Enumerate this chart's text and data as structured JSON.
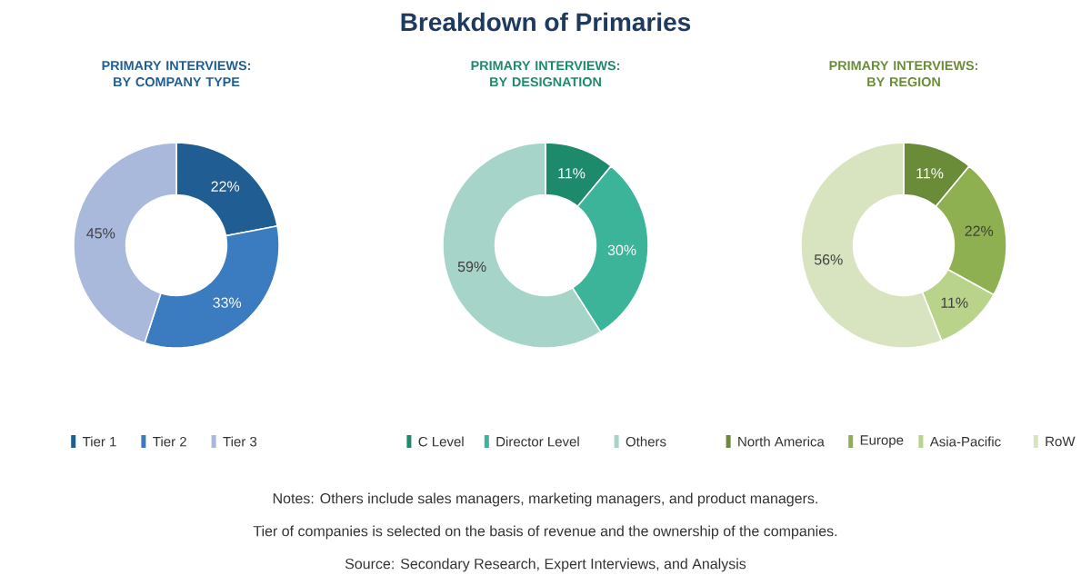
{
  "chart_data": [
    {
      "type": "donut",
      "title": "PRIMARY INTERVIEWS: BY COMPANY TYPE",
      "categories": [
        "Tier 1",
        "Tier 2",
        "Tier 3"
      ],
      "values": [
        22,
        33,
        45
      ],
      "colors": [
        "#1f5d93",
        "#3b7cc0",
        "#a8b9dc"
      ],
      "value_labels": [
        "22%",
        "33%",
        "45%"
      ],
      "legend": "bottom",
      "annotations": [
        "Breakdown of Primaries",
        "Notes: Others include sales managers, marketing managers, and product managers.",
        "Tier of companies is selected on the basis of revenue and the ownership of the companies.",
        "Source: Secondary Research, Expert Interviews, and Analysis"
      ]
    },
    {
      "type": "donut",
      "title": "PRIMARY INTERVIEWS: BY DESIGNATION",
      "categories": [
        "C Level",
        "Director Level",
        "Others"
      ],
      "values": [
        11,
        30,
        59
      ],
      "colors": [
        "#1d8a6c",
        "#3bb49a",
        "#a6d4c8"
      ],
      "value_labels": [
        "11%",
        "30%",
        "59%"
      ],
      "legend": "bottom"
    },
    {
      "type": "donut",
      "title": "PRIMARY INTERVIEWS: BY REGION",
      "categories": [
        "North America",
        "Europe",
        "Asia-Pacific",
        "RoW"
      ],
      "values": [
        11,
        22,
        11,
        56
      ],
      "colors": [
        "#6a8c38",
        "#8fb050",
        "#b9d38b",
        "#d8e4bf"
      ],
      "value_labels": [
        "11%",
        "22%",
        "11%",
        "56%"
      ],
      "legend": "bottom"
    }
  ]
}
